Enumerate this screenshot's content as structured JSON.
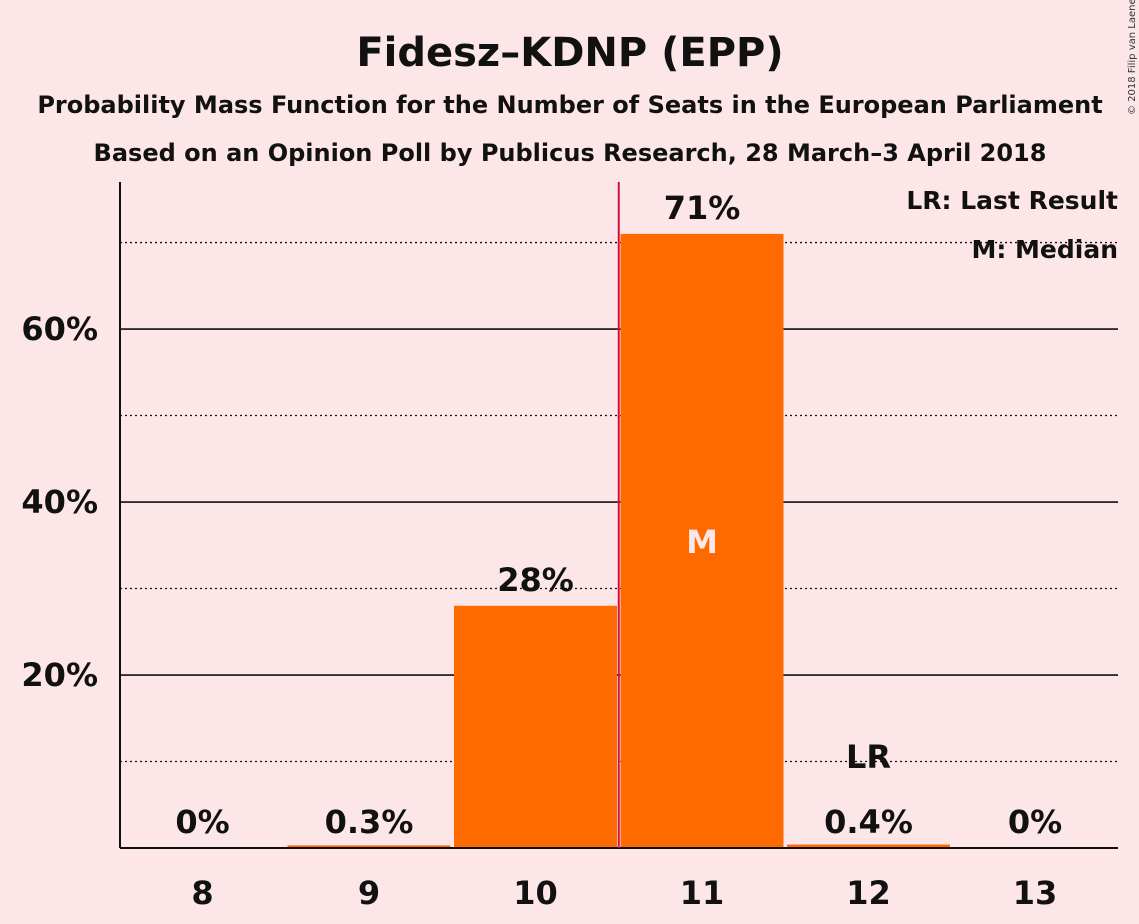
{
  "chart_data": {
    "type": "bar",
    "title": "Fidesz–KDNP (EPP)",
    "subtitle": "Probability Mass Function for the Number of Seats in the European Parliament",
    "subtitle2": "Based on an Opinion Poll by Publicus Research, 28 March–3 April 2018",
    "copyright": "© 2018 Filip van Laenen",
    "categories": [
      "8",
      "9",
      "10",
      "11",
      "12",
      "13"
    ],
    "values": [
      0,
      0.3,
      28,
      71,
      0.4,
      0
    ],
    "value_labels": [
      "0%",
      "0.3%",
      "28%",
      "71%",
      "0.4%",
      "0%"
    ],
    "y_ticks": [
      20,
      40,
      60
    ],
    "y_tick_labels": [
      "20%",
      "40%",
      "60%"
    ],
    "y_minor_ticks": [
      10,
      30,
      50,
      70
    ],
    "ylim": [
      0,
      77
    ],
    "median_category": "11",
    "median_marker": "M",
    "last_result_category": "12",
    "last_result_marker": "LR",
    "legend": [
      "LR: Last Result",
      "M: Median"
    ],
    "legend_position": "top-right",
    "colors": {
      "bar": "#ff6a00",
      "background": "#fde6e8",
      "median_line": "#d0103a",
      "grid": "#111111"
    }
  }
}
